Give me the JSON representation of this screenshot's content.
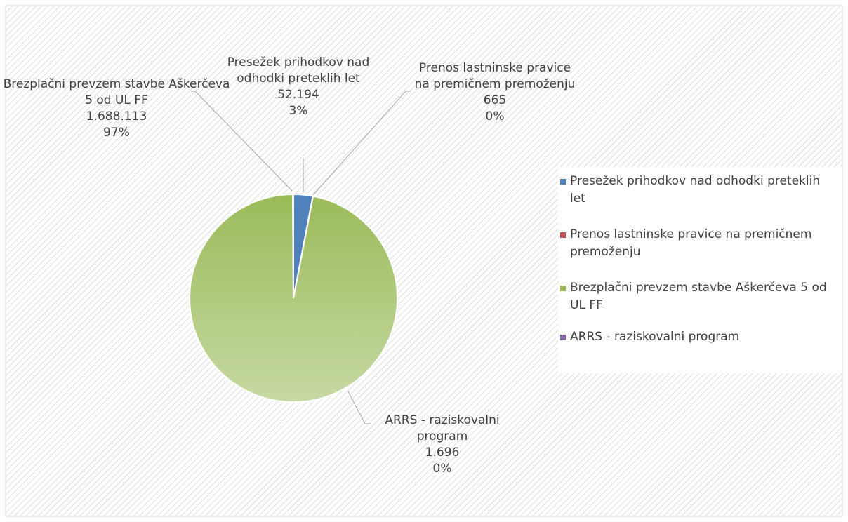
{
  "chart_data": {
    "type": "pie",
    "categories": [
      "Presežek prihodkov nad odhodki preteklih let",
      "Prenos lastninske pravice na premičnem premoženju",
      "Brezplačni prevzem stavbe Aškerčeva 5 od UL FF",
      "ARRS - raziskovalni program"
    ],
    "values": [
      52194,
      665,
      1688113,
      1696
    ],
    "value_labels": [
      "52.194",
      "665",
      "1.688.113",
      "1.696"
    ],
    "percent_labels": [
      "3%",
      "0%",
      "97%",
      "0%"
    ],
    "colors": [
      "#4f81bd",
      "#c0504d",
      "#9bbb59",
      "#8064a2"
    ],
    "legend": "right"
  }
}
